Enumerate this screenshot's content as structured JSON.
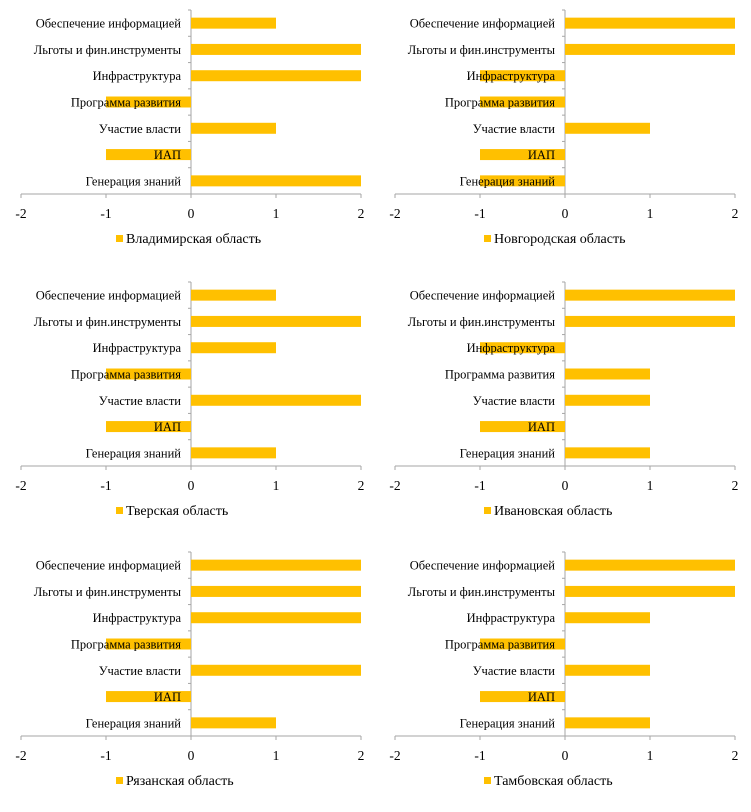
{
  "chart_data": [
    {
      "type": "bar",
      "orientation": "horizontal",
      "categories": [
        "Обеспечение информацией",
        "Льготы и фин.инструменты",
        "Инфраструктура",
        "Программа развития",
        "Участие власти",
        "ИАП",
        "Генерация знаний"
      ],
      "series": [
        {
          "name": "Владимирская область",
          "values": [
            1,
            2,
            2,
            -1,
            1,
            -1,
            2
          ]
        }
      ],
      "xlim": [
        -2,
        2
      ],
      "xticks": [
        "-2",
        "-1",
        "0",
        "1",
        "2"
      ],
      "legend": "bottom",
      "grid": false,
      "color": "#FFC000"
    },
    {
      "type": "bar",
      "orientation": "horizontal",
      "categories": [
        "Обеспечение информацией",
        "Льготы и фин.инструменты",
        "Инфраструктура",
        "Программа развития",
        "Участие власти",
        "ИАП",
        "Генерация знаний"
      ],
      "series": [
        {
          "name": "Новгородская область",
          "values": [
            2,
            2,
            -1,
            -1,
            1,
            -1,
            -1
          ]
        }
      ],
      "xlim": [
        -2,
        2
      ],
      "xticks": [
        "-2",
        "-1",
        "0",
        "1",
        "2"
      ],
      "legend": "bottom",
      "grid": false,
      "color": "#FFC000"
    },
    {
      "type": "bar",
      "orientation": "horizontal",
      "categories": [
        "Обеспечение информацией",
        "Льготы и фин.инструменты",
        "Инфраструктура",
        "Программа развития",
        "Участие власти",
        "ИАП",
        "Генерация знаний"
      ],
      "series": [
        {
          "name": "Тверская область",
          "values": [
            1,
            2,
            1,
            -1,
            2,
            -1,
            1
          ]
        }
      ],
      "xlim": [
        -2,
        2
      ],
      "xticks": [
        "-2",
        "-1",
        "0",
        "1",
        "2"
      ],
      "legend": "bottom",
      "grid": false,
      "color": "#FFC000"
    },
    {
      "type": "bar",
      "orientation": "horizontal",
      "categories": [
        "Обеспечение информацией",
        "Льготы и фин.инструменты",
        "Инфраструктура",
        "Программа развития",
        "Участие власти",
        "ИАП",
        "Генерация знаний"
      ],
      "series": [
        {
          "name": "Ивановская область",
          "values": [
            2,
            2,
            -1,
            1,
            1,
            -1,
            1
          ]
        }
      ],
      "xlim": [
        -2,
        2
      ],
      "xticks": [
        "-2",
        "-1",
        "0",
        "1",
        "2"
      ],
      "legend": "bottom",
      "grid": false,
      "color": "#FFC000"
    },
    {
      "type": "bar",
      "orientation": "horizontal",
      "categories": [
        "Обеспечение информацией",
        "Льготы и фин.инструменты",
        "Инфраструктура",
        "Программа развития",
        "Участие власти",
        "ИАП",
        "Генерация знаний"
      ],
      "series": [
        {
          "name": "Рязанская область",
          "values": [
            2,
            2,
            2,
            -1,
            2,
            -1,
            1
          ]
        }
      ],
      "xlim": [
        -2,
        2
      ],
      "xticks": [
        "-2",
        "-1",
        "0",
        "1",
        "2"
      ],
      "legend": "bottom",
      "grid": false,
      "color": "#FFC000"
    },
    {
      "type": "bar",
      "orientation": "horizontal",
      "categories": [
        "Обеспечение информацией",
        "Льготы и фин.инструменты",
        "Инфраструктура",
        "Программа развития",
        "Участие власти",
        "ИАП",
        "Генерация знаний"
      ],
      "series": [
        {
          "name": "Тамбовская область",
          "values": [
            2,
            2,
            1,
            -1,
            1,
            -1,
            1
          ]
        }
      ],
      "xlim": [
        -2,
        2
      ],
      "xticks": [
        "-2",
        "-1",
        "0",
        "1",
        "2"
      ],
      "legend": "bottom",
      "grid": false,
      "color": "#FFC000"
    }
  ]
}
